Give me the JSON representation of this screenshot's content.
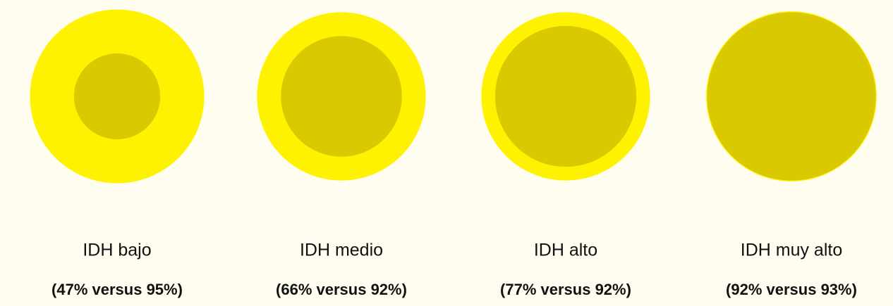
{
  "chart_data": {
    "type": "nested_circles",
    "categories": [
      "IDH bajo",
      "IDH medio",
      "IDH alto",
      "IDH muy alto"
    ],
    "series": [
      {
        "color": "#fff200",
        "values": [
          95,
          92,
          92,
          93
        ]
      },
      {
        "color": "#d9c900",
        "values": [
          47,
          66,
          77,
          92
        ]
      }
    ],
    "value_labels": [
      "(47% versus 95%)",
      "(66% versus 92%)",
      "(77% versus 92%)",
      "(92% versus 93%)"
    ]
  }
}
